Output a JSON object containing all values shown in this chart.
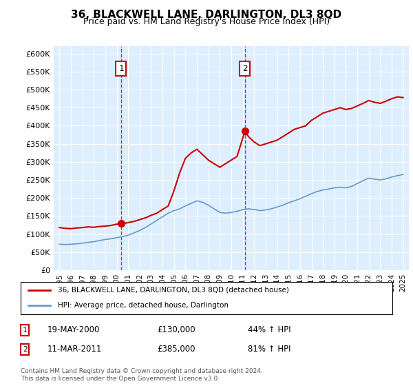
{
  "title": "36, BLACKWELL LANE, DARLINGTON, DL3 8QD",
  "subtitle": "Price paid vs. HM Land Registry's House Price Index (HPI)",
  "legend_line1": "36, BLACKWELL LANE, DARLINGTON, DL3 8QD (detached house)",
  "legend_line2": "HPI: Average price, detached house, Darlington",
  "marker1_label": "1",
  "marker1_date": "19-MAY-2000",
  "marker1_value": "£130,000",
  "marker1_pct": "44% ↑ HPI",
  "marker1_year": 2000.38,
  "marker1_price": 130000,
  "marker2_label": "2",
  "marker2_date": "11-MAR-2011",
  "marker2_value": "£385,000",
  "marker2_pct": "81% ↑ HPI",
  "marker2_year": 2011.19,
  "marker2_price": 385000,
  "footnote1": "Contains HM Land Registry data © Crown copyright and database right 2024.",
  "footnote2": "This data is licensed under the Open Government Licence v3.0.",
  "red_color": "#cc0000",
  "blue_color": "#6699cc",
  "bg_color": "#ddeeff",
  "plot_bg": "#ddeeff",
  "marker_box_color": "#cc0000",
  "ylim": [
    0,
    620000
  ],
  "xlim": [
    1994.5,
    2025.5
  ],
  "yticks": [
    0,
    50000,
    100000,
    150000,
    200000,
    250000,
    300000,
    350000,
    400000,
    450000,
    500000,
    550000,
    600000
  ],
  "ytick_labels": [
    "£0",
    "£50K",
    "£100K",
    "£150K",
    "£200K",
    "£250K",
    "£300K",
    "£350K",
    "£400K",
    "£450K",
    "£500K",
    "£550K",
    "£600K"
  ],
  "xticks": [
    1995,
    1996,
    1997,
    1998,
    1999,
    2000,
    2001,
    2002,
    2003,
    2004,
    2005,
    2006,
    2007,
    2008,
    2009,
    2010,
    2011,
    2012,
    2013,
    2014,
    2015,
    2016,
    2017,
    2018,
    2019,
    2020,
    2021,
    2022,
    2023,
    2024,
    2025
  ],
  "red_x": [
    1995.0,
    1995.5,
    1996.0,
    1996.5,
    1997.0,
    1997.5,
    1998.0,
    1998.5,
    1999.0,
    1999.5,
    2000.38,
    2000.5,
    2001.0,
    2001.5,
    2002.0,
    2002.5,
    2003.0,
    2003.5,
    2004.0,
    2004.5,
    2005.0,
    2005.5,
    2006.0,
    2006.5,
    2007.0,
    2007.5,
    2008.0,
    2008.5,
    2009.0,
    2009.5,
    2010.0,
    2010.5,
    2011.19,
    2011.5,
    2012.0,
    2012.5,
    2013.0,
    2013.5,
    2014.0,
    2014.5,
    2015.0,
    2015.5,
    2016.0,
    2016.5,
    2017.0,
    2017.5,
    2018.0,
    2018.5,
    2019.0,
    2019.5,
    2020.0,
    2020.5,
    2021.0,
    2021.5,
    2022.0,
    2022.5,
    2023.0,
    2023.5,
    2024.0,
    2024.5,
    2025.0
  ],
  "red_y": [
    118000,
    116000,
    115000,
    117000,
    118000,
    120000,
    119000,
    121000,
    122000,
    124000,
    130000,
    128000,
    132000,
    135000,
    140000,
    145000,
    152000,
    158000,
    168000,
    178000,
    220000,
    270000,
    310000,
    325000,
    335000,
    320000,
    305000,
    295000,
    285000,
    295000,
    305000,
    315000,
    385000,
    370000,
    355000,
    345000,
    350000,
    355000,
    360000,
    370000,
    380000,
    390000,
    395000,
    400000,
    415000,
    425000,
    435000,
    440000,
    445000,
    450000,
    445000,
    448000,
    455000,
    462000,
    470000,
    465000,
    462000,
    468000,
    475000,
    480000,
    478000
  ],
  "blue_x": [
    1995.0,
    1995.5,
    1996.0,
    1996.5,
    1997.0,
    1997.5,
    1998.0,
    1998.5,
    1999.0,
    1999.5,
    2000.0,
    2000.5,
    2001.0,
    2001.5,
    2002.0,
    2002.5,
    2003.0,
    2003.5,
    2004.0,
    2004.5,
    2005.0,
    2005.5,
    2006.0,
    2006.5,
    2007.0,
    2007.5,
    2008.0,
    2008.5,
    2009.0,
    2009.5,
    2010.0,
    2010.5,
    2011.0,
    2011.5,
    2012.0,
    2012.5,
    2013.0,
    2013.5,
    2014.0,
    2014.5,
    2015.0,
    2015.5,
    2016.0,
    2016.5,
    2017.0,
    2017.5,
    2018.0,
    2018.5,
    2019.0,
    2019.5,
    2020.0,
    2020.5,
    2021.0,
    2021.5,
    2022.0,
    2022.5,
    2023.0,
    2023.5,
    2024.0,
    2024.5,
    2025.0
  ],
  "blue_y": [
    72000,
    71000,
    72000,
    73000,
    75000,
    77000,
    79000,
    82000,
    85000,
    87000,
    90000,
    93000,
    97000,
    103000,
    110000,
    118000,
    128000,
    138000,
    148000,
    158000,
    165000,
    170000,
    178000,
    185000,
    192000,
    188000,
    180000,
    170000,
    160000,
    158000,
    160000,
    163000,
    168000,
    170000,
    168000,
    165000,
    167000,
    170000,
    175000,
    180000,
    187000,
    192000,
    198000,
    205000,
    212000,
    218000,
    222000,
    225000,
    228000,
    230000,
    228000,
    232000,
    240000,
    248000,
    255000,
    252000,
    250000,
    253000,
    258000,
    262000,
    265000
  ]
}
